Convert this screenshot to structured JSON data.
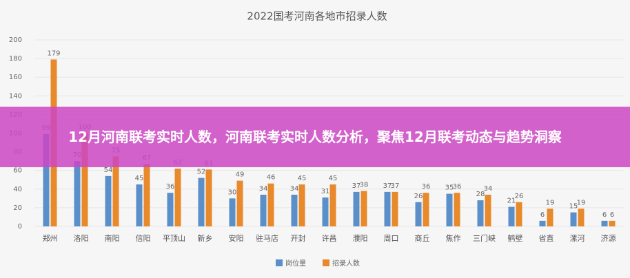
{
  "chart_data": {
    "type": "bar",
    "title": "2022国考河南各地市招录人数",
    "categories": [
      "郑州",
      "洛阳",
      "南阳",
      "信阳",
      "平顶山",
      "新乡",
      "安阳",
      "驻马店",
      "开封",
      "许昌",
      "濮阳",
      "周口",
      "商丘",
      "焦作",
      "三门峡",
      "鹤壁",
      "省直",
      "漯河",
      "济源"
    ],
    "series": [
      {
        "name": "岗位量",
        "color": "#5b8fc9",
        "values": [
          99,
          70,
          54,
          45,
          36,
          52,
          30,
          34,
          34,
          31,
          37,
          37,
          26,
          35,
          28,
          21,
          6,
          15,
          6
        ]
      },
      {
        "name": "招录人数",
        "color": "#e8892b",
        "values": [
          179,
          100,
          75,
          67,
          62,
          61,
          49,
          46,
          45,
          45,
          38,
          37,
          36,
          36,
          34,
          26,
          19,
          19,
          6
        ]
      }
    ],
    "ylim": [
      0,
      200
    ],
    "yticks": [
      0,
      20,
      40,
      60,
      80,
      100,
      120,
      140,
      160,
      180,
      200
    ],
    "grid": true,
    "legend": "bottom"
  },
  "banner": {
    "title": "12月河南联考实时人数，河南联考实时人数分析，聚焦12月联考动态与趋势洞察"
  }
}
